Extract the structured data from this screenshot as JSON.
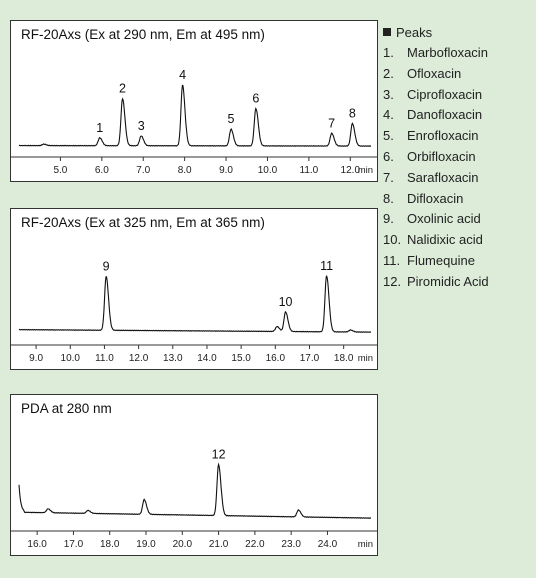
{
  "legend": {
    "title": "Peaks",
    "items": [
      {
        "num": "1.",
        "name": "Marbofloxacin"
      },
      {
        "num": "2.",
        "name": "Ofloxacin"
      },
      {
        "num": "3.",
        "name": "Ciprofloxacin"
      },
      {
        "num": "4.",
        "name": "Danofloxacin"
      },
      {
        "num": "5.",
        "name": "Enrofloxacin"
      },
      {
        "num": "6.",
        "name": "Orbifloxacin"
      },
      {
        "num": "7.",
        "name": "Sarafloxacin"
      },
      {
        "num": "8.",
        "name": "Difloxacin"
      },
      {
        "num": "9.",
        "name": "Oxolinic acid"
      },
      {
        "num": "10.",
        "name": "Nalidixic acid"
      },
      {
        "num": "11.",
        "name": "Flumequine"
      },
      {
        "num": "12.",
        "name": "Piromidic Acid"
      }
    ]
  },
  "chart_data": [
    {
      "type": "line",
      "title": "RF-20Axs (Ex at 290 nm, Em at 495 nm)",
      "xlabel": "min",
      "xlim": [
        4.0,
        12.5
      ],
      "xticks": [
        "5.0",
        "6.0",
        "7.0",
        "8.0",
        "9.0",
        "10.0",
        "11.0",
        "12.0"
      ],
      "ylim": [
        0,
        100
      ],
      "baseline": 3,
      "peaks": [
        {
          "label": "",
          "x": 4.6,
          "y": 1.5
        },
        {
          "label": "1",
          "x": 5.95,
          "y": 8
        },
        {
          "label": "2",
          "x": 6.5,
          "y": 48
        },
        {
          "label": "3",
          "x": 6.95,
          "y": 10
        },
        {
          "label": "4",
          "x": 7.95,
          "y": 62
        },
        {
          "label": "5",
          "x": 9.12,
          "y": 17
        },
        {
          "label": "6",
          "x": 9.72,
          "y": 38
        },
        {
          "label": "7",
          "x": 11.55,
          "y": 13
        },
        {
          "label": "8",
          "x": 12.05,
          "y": 23
        }
      ]
    },
    {
      "type": "line",
      "title": "RF-20Axs (Ex at 325 nm, Em at 365 nm)",
      "xlabel": "min",
      "xlim": [
        8.5,
        18.8
      ],
      "xticks": [
        "9.0",
        "10.0",
        "11.0",
        "12.0",
        "13.0",
        "14.0",
        "15.0",
        "16.0",
        "17.0",
        "18.0"
      ],
      "ylim": [
        0,
        100
      ],
      "baseline": 5,
      "peaks": [
        {
          "label": "9",
          "x": 11.05,
          "y": 55
        },
        {
          "label": "",
          "x": 16.05,
          "y": 5
        },
        {
          "label": "10",
          "x": 16.3,
          "y": 20
        },
        {
          "label": "11",
          "x": 17.5,
          "y": 57
        },
        {
          "label": "",
          "x": 18.2,
          "y": 2
        }
      ]
    },
    {
      "type": "line",
      "title": "PDA at 280 nm",
      "xlabel": "min",
      "xlim": [
        15.5,
        25.2
      ],
      "xticks": [
        "16.0",
        "17.0",
        "18.0",
        "19.0",
        "20.0",
        "21.0",
        "22.0",
        "23.0",
        "24.0"
      ],
      "ylim": [
        0,
        100
      ],
      "baseline": 5,
      "peaks": [
        {
          "label": "",
          "x": 16.3,
          "y": 4
        },
        {
          "label": "",
          "x": 17.4,
          "y": 3
        },
        {
          "label": "",
          "x": 18.95,
          "y": 15
        },
        {
          "label": "12",
          "x": 21.0,
          "y": 52
        },
        {
          "label": "",
          "x": 23.2,
          "y": 7
        }
      ]
    }
  ]
}
